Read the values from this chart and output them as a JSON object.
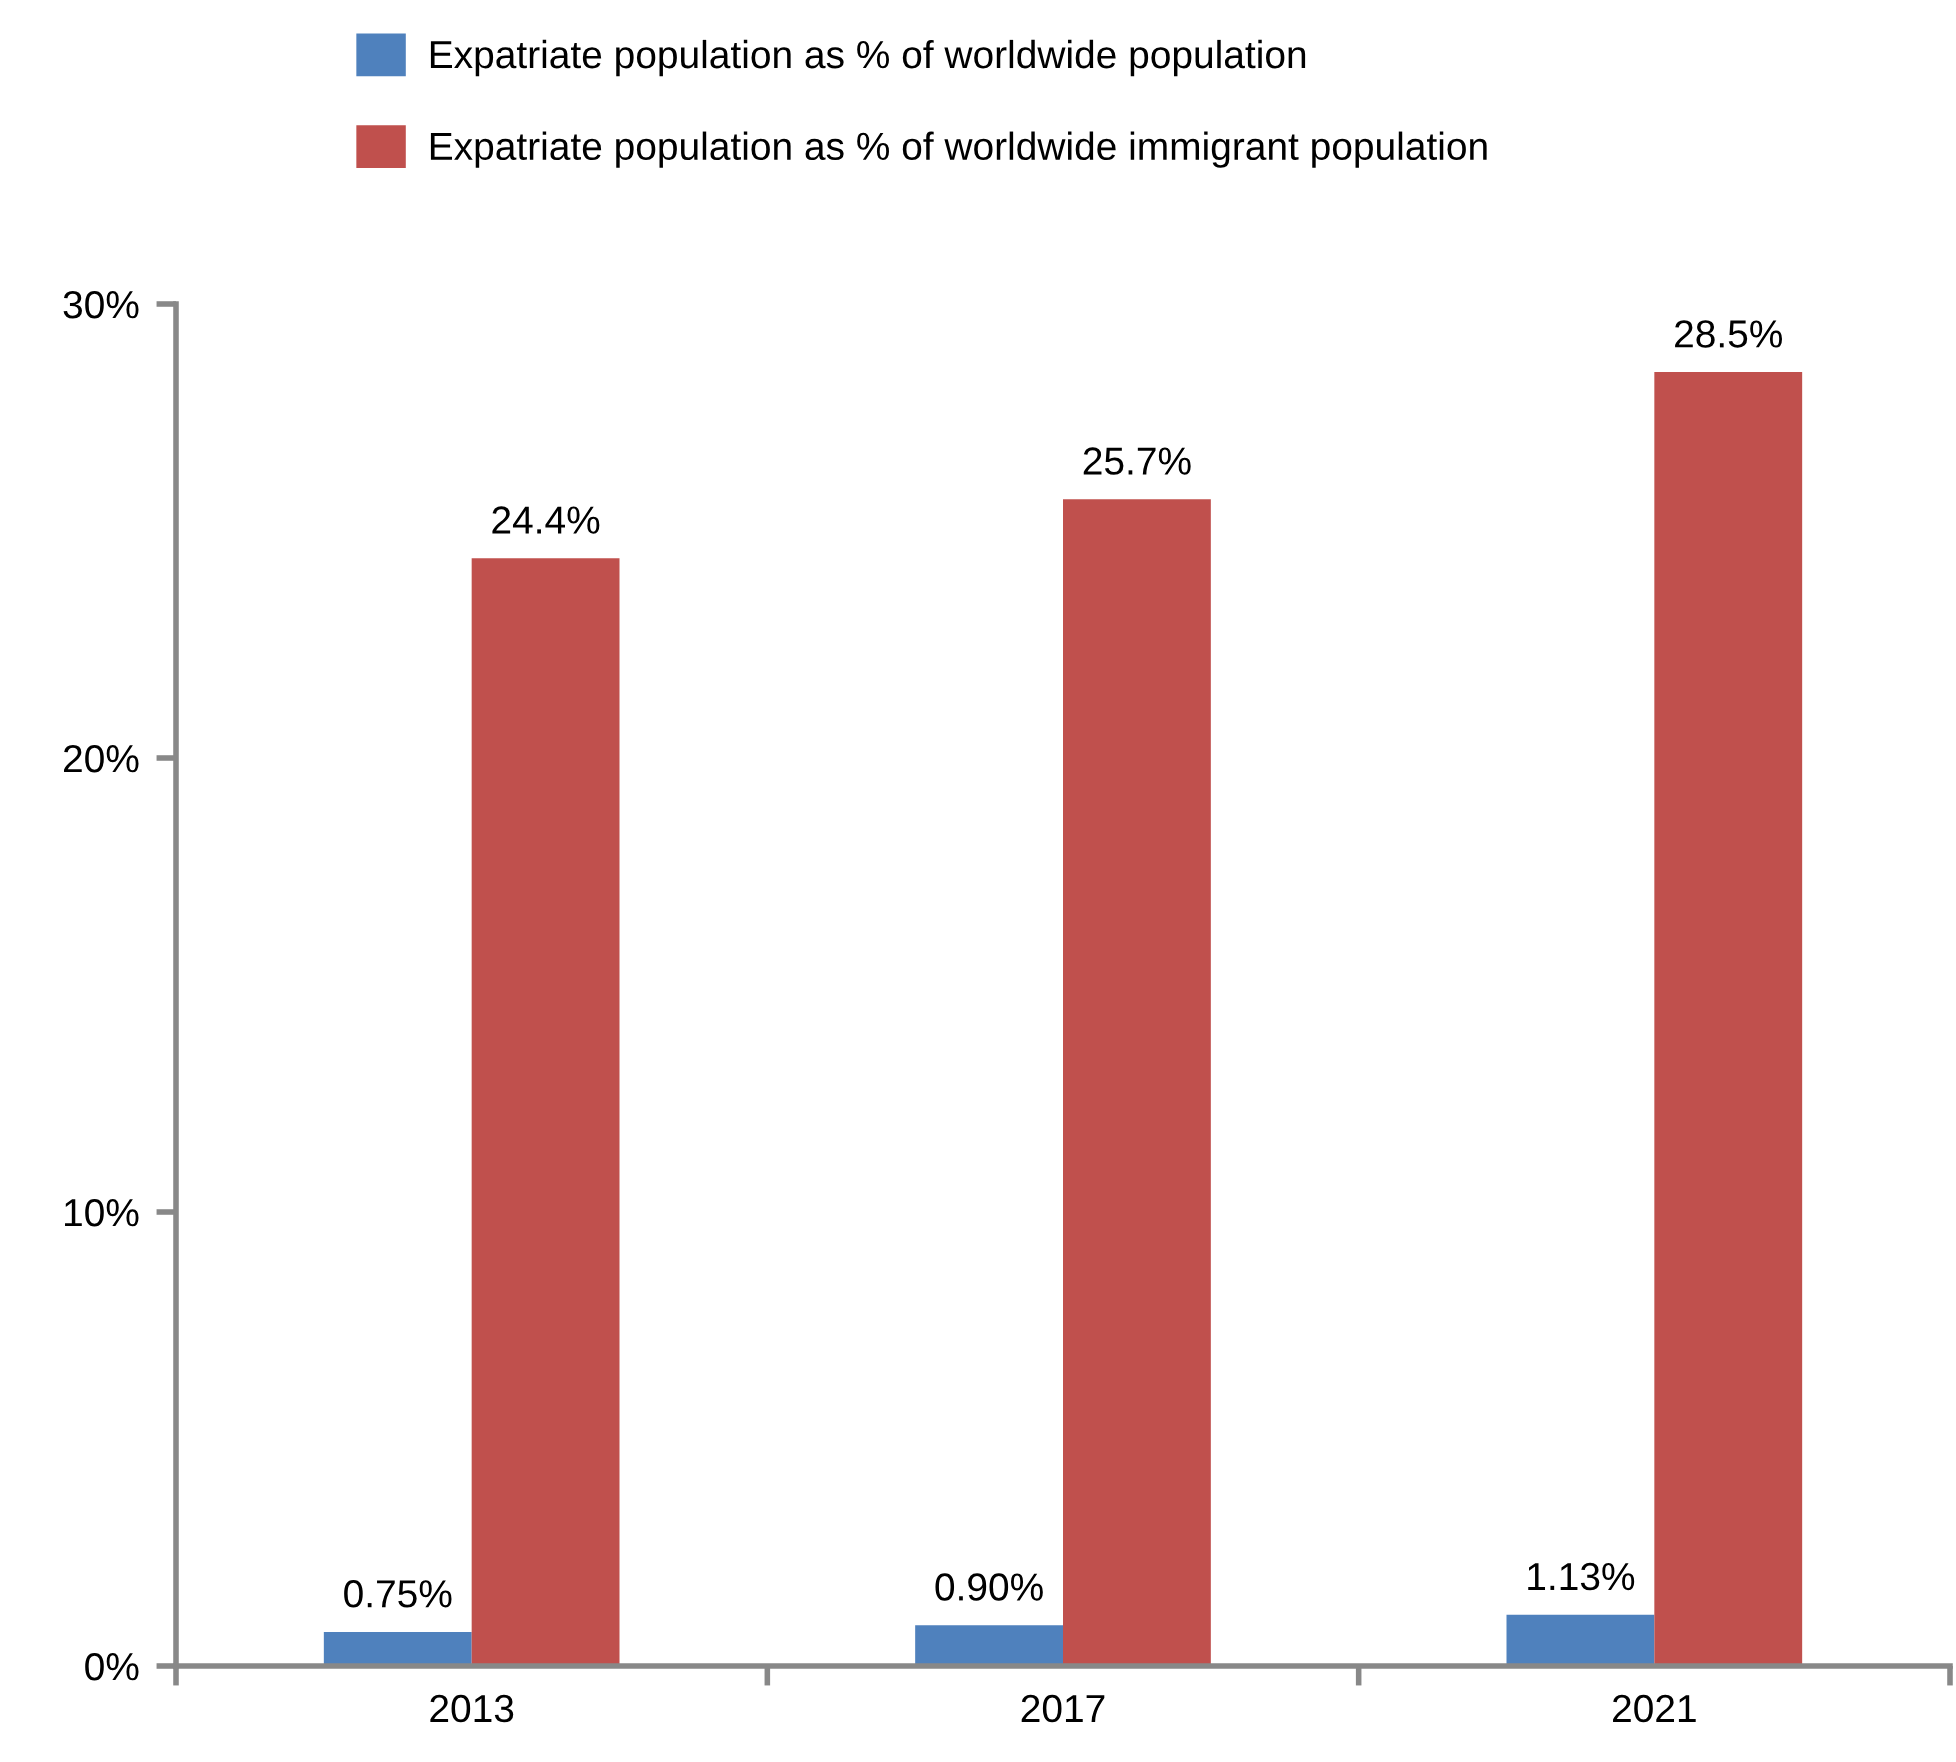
{
  "chart_data": {
    "type": "bar",
    "categories": [
      "2013",
      "2017",
      "2021"
    ],
    "series": [
      {
        "name": "Expatriate population as % of worldwide population",
        "color": "#4f81bd",
        "values": [
          0.75,
          0.9,
          1.13
        ],
        "value_labels": [
          "0.75%",
          "0.90%",
          "1.13%"
        ]
      },
      {
        "name": "Expatriate population as % of worldwide immigrant population",
        "color": "#c0504d",
        "values": [
          24.4,
          25.7,
          28.5
        ],
        "value_labels": [
          "24.4%",
          "25.7%",
          "28.5%"
        ]
      }
    ],
    "ylim": [
      0,
      30
    ],
    "yticks": [
      {
        "value": 0,
        "label": "0%"
      },
      {
        "value": 10,
        "label": "10%"
      },
      {
        "value": 20,
        "label": "20%"
      },
      {
        "value": 30,
        "label": "30%"
      }
    ],
    "legend": "top",
    "grid": false
  }
}
